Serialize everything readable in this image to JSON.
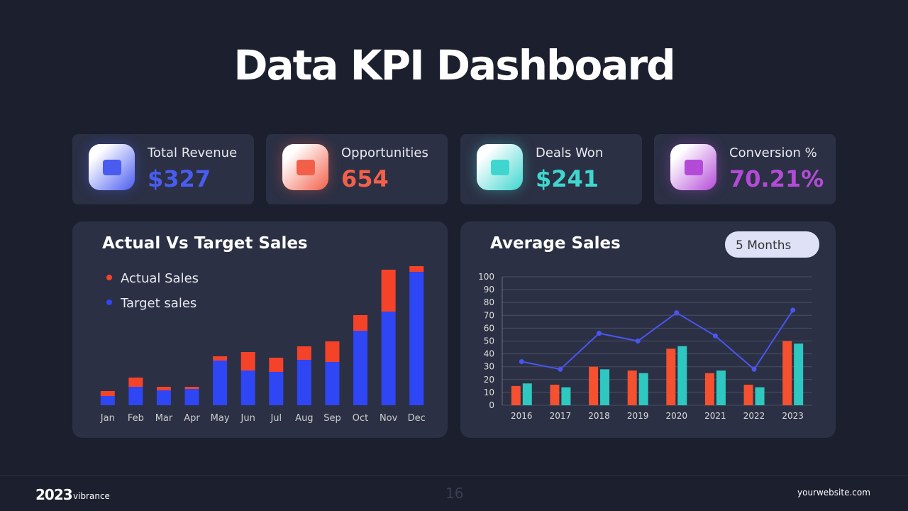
{
  "title": "Data KPI Dashboard",
  "kpis": [
    {
      "label": "Total Revenue",
      "value": "$327",
      "color": "#4a5cf0"
    },
    {
      "label": "Opportunities",
      "value": "654",
      "color": "#f2604a"
    },
    {
      "label": "Deals Won",
      "value": "$241",
      "color": "#3fd6cf"
    },
    {
      "label": "Conversion %",
      "value": "70.21%",
      "color": "#b44bd8"
    }
  ],
  "chart_data": [
    {
      "type": "bar",
      "stacked": true,
      "title": "Actual Vs Target Sales",
      "categories": [
        "Jan",
        "Feb",
        "Mar",
        "Apr",
        "May",
        "Jun",
        "Jul",
        "Aug",
        "Sep",
        "Oct",
        "Nov",
        "Dec"
      ],
      "series": [
        {
          "name": "Actual Sales",
          "color": "#f5432a",
          "values": [
            7,
            13,
            5,
            3,
            6,
            26,
            20,
            19,
            29,
            22,
            59,
            8
          ]
        },
        {
          "name": "Target sales",
          "color": "#2f46f5",
          "values": [
            13,
            26,
            21,
            23,
            63,
            49,
            47,
            64,
            61,
            105,
            132,
            188
          ]
        }
      ]
    },
    {
      "type": "bar",
      "title": "Average Sales",
      "button": "5 Months",
      "categories": [
        "2016",
        "2017",
        "2018",
        "2019",
        "2020",
        "2021",
        "2022",
        "2023"
      ],
      "series": [
        {
          "color": "#f5502f",
          "values": [
            15,
            16,
            30,
            27,
            44,
            25,
            16,
            50
          ]
        },
        {
          "color": "#2ec8c0",
          "values": [
            17,
            14,
            28,
            25,
            46,
            27,
            14,
            48
          ]
        },
        {
          "type": "line",
          "color": "#4a55f0",
          "values": [
            34,
            28,
            56,
            50,
            72,
            54,
            28,
            74
          ]
        }
      ],
      "ylim": [
        0,
        100
      ],
      "yticks": [
        0,
        10,
        20,
        30,
        40,
        50,
        60,
        70,
        80,
        90,
        100
      ],
      "grid": true
    }
  ],
  "footer": {
    "year": "2023",
    "brand": "vibrance",
    "page": "16",
    "website": "yourwebsite.com"
  }
}
